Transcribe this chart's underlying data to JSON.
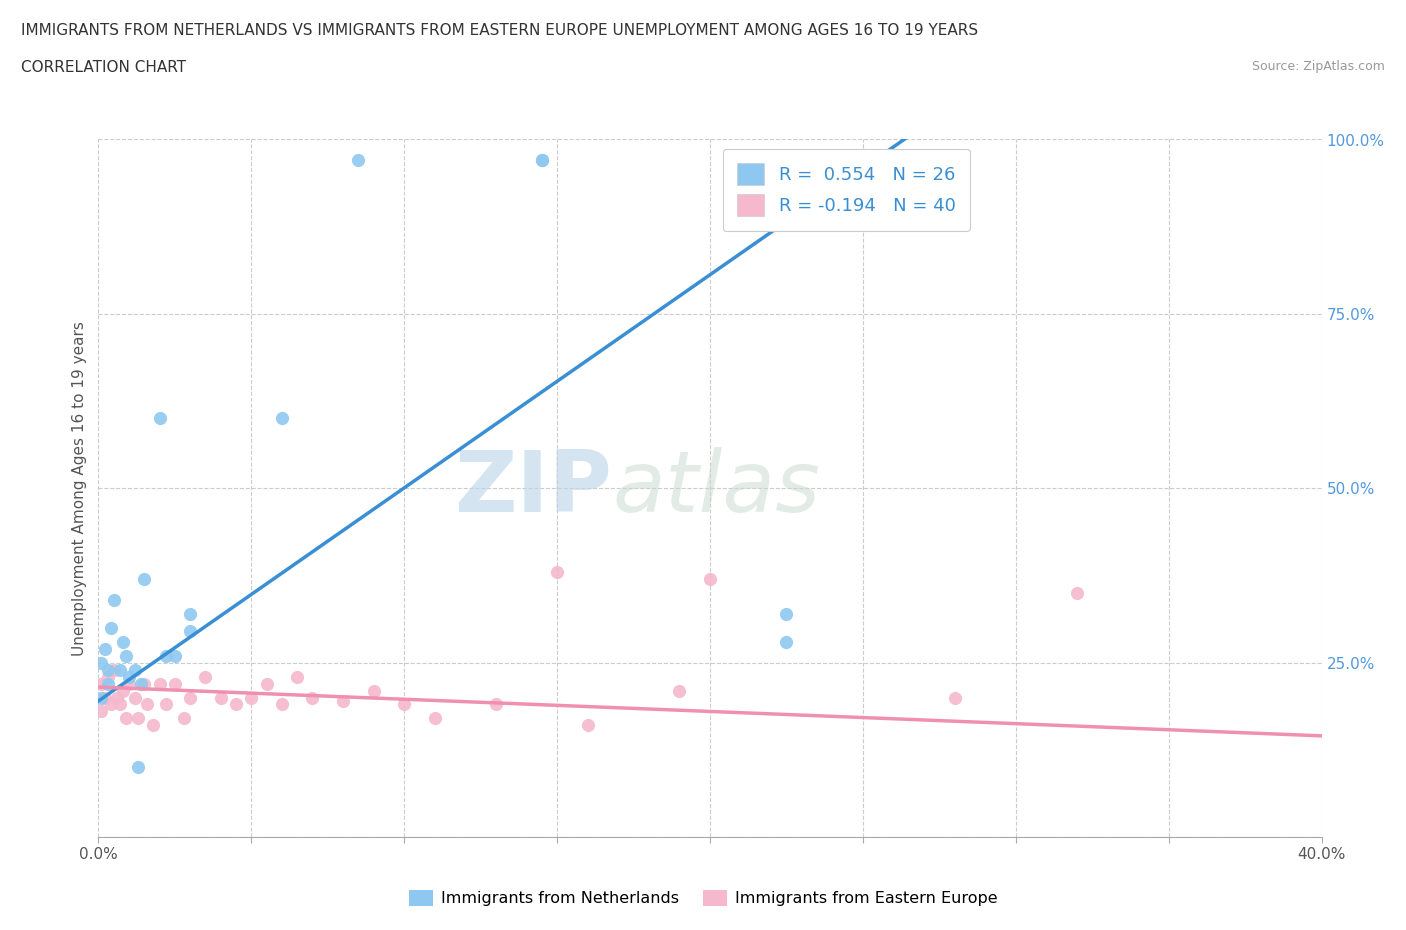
{
  "title_line1": "IMMIGRANTS FROM NETHERLANDS VS IMMIGRANTS FROM EASTERN EUROPE UNEMPLOYMENT AMONG AGES 16 TO 19 YEARS",
  "title_line2": "CORRELATION CHART",
  "source_text": "Source: ZipAtlas.com",
  "ylabel": "Unemployment Among Ages 16 to 19 years",
  "xmin": 0.0,
  "xmax": 0.4,
  "ymin": 0.0,
  "ymax": 1.0,
  "x_ticks": [
    0.0,
    0.05,
    0.1,
    0.15,
    0.2,
    0.25,
    0.3,
    0.35,
    0.4
  ],
  "x_tick_labels": [
    "0.0%",
    "",
    "",
    "",
    "",
    "",
    "",
    "",
    "40.0%"
  ],
  "y_ticks": [
    0.0,
    0.25,
    0.5,
    0.75,
    1.0
  ],
  "y_tick_labels": [
    "",
    "25.0%",
    "50.0%",
    "75.0%",
    "100.0%"
  ],
  "netherlands_color": "#8EC8F0",
  "eastern_europe_color": "#F5B8CC",
  "netherlands_line_color": "#3A8FD4",
  "eastern_europe_line_color": "#F090B0",
  "R_netherlands": 0.554,
  "N_netherlands": 26,
  "R_eastern_europe": -0.194,
  "N_eastern_europe": 40,
  "watermark_zip": "ZIP",
  "watermark_atlas": "atlas",
  "background_color": "#ffffff",
  "grid_color": "#cccccc",
  "netherlands_scatter_x": [
    0.001,
    0.001,
    0.002,
    0.003,
    0.003,
    0.004,
    0.005,
    0.007,
    0.008,
    0.009,
    0.01,
    0.012,
    0.013,
    0.014,
    0.015,
    0.02,
    0.022,
    0.025,
    0.03,
    0.03,
    0.06,
    0.085,
    0.145,
    0.145,
    0.225,
    0.225
  ],
  "netherlands_scatter_y": [
    0.2,
    0.25,
    0.27,
    0.24,
    0.22,
    0.3,
    0.34,
    0.24,
    0.28,
    0.26,
    0.23,
    0.24,
    0.1,
    0.22,
    0.37,
    0.6,
    0.26,
    0.26,
    0.295,
    0.32,
    0.6,
    0.97,
    0.97,
    0.97,
    0.28,
    0.32
  ],
  "eastern_europe_scatter_x": [
    0.001,
    0.001,
    0.002,
    0.003,
    0.004,
    0.005,
    0.006,
    0.007,
    0.008,
    0.009,
    0.01,
    0.012,
    0.013,
    0.015,
    0.016,
    0.018,
    0.02,
    0.022,
    0.025,
    0.028,
    0.03,
    0.035,
    0.04,
    0.045,
    0.05,
    0.055,
    0.06,
    0.065,
    0.07,
    0.08,
    0.09,
    0.1,
    0.11,
    0.13,
    0.15,
    0.16,
    0.19,
    0.2,
    0.28,
    0.32
  ],
  "eastern_europe_scatter_y": [
    0.18,
    0.22,
    0.2,
    0.23,
    0.19,
    0.24,
    0.2,
    0.19,
    0.21,
    0.17,
    0.22,
    0.2,
    0.17,
    0.22,
    0.19,
    0.16,
    0.22,
    0.19,
    0.22,
    0.17,
    0.2,
    0.23,
    0.2,
    0.19,
    0.2,
    0.22,
    0.19,
    0.23,
    0.2,
    0.195,
    0.21,
    0.19,
    0.17,
    0.19,
    0.38,
    0.16,
    0.21,
    0.37,
    0.2,
    0.35
  ],
  "nl_line_x0": 0.0,
  "nl_line_y0": 0.195,
  "nl_line_x1": 0.27,
  "nl_line_y1": 1.02,
  "ee_line_x0": 0.0,
  "ee_line_y0": 0.215,
  "ee_line_x1": 0.4,
  "ee_line_y1": 0.145,
  "legend_R1_color": "#3A8FD4",
  "legend_R2_color": "#E06090",
  "legend_N_color": "#333333"
}
